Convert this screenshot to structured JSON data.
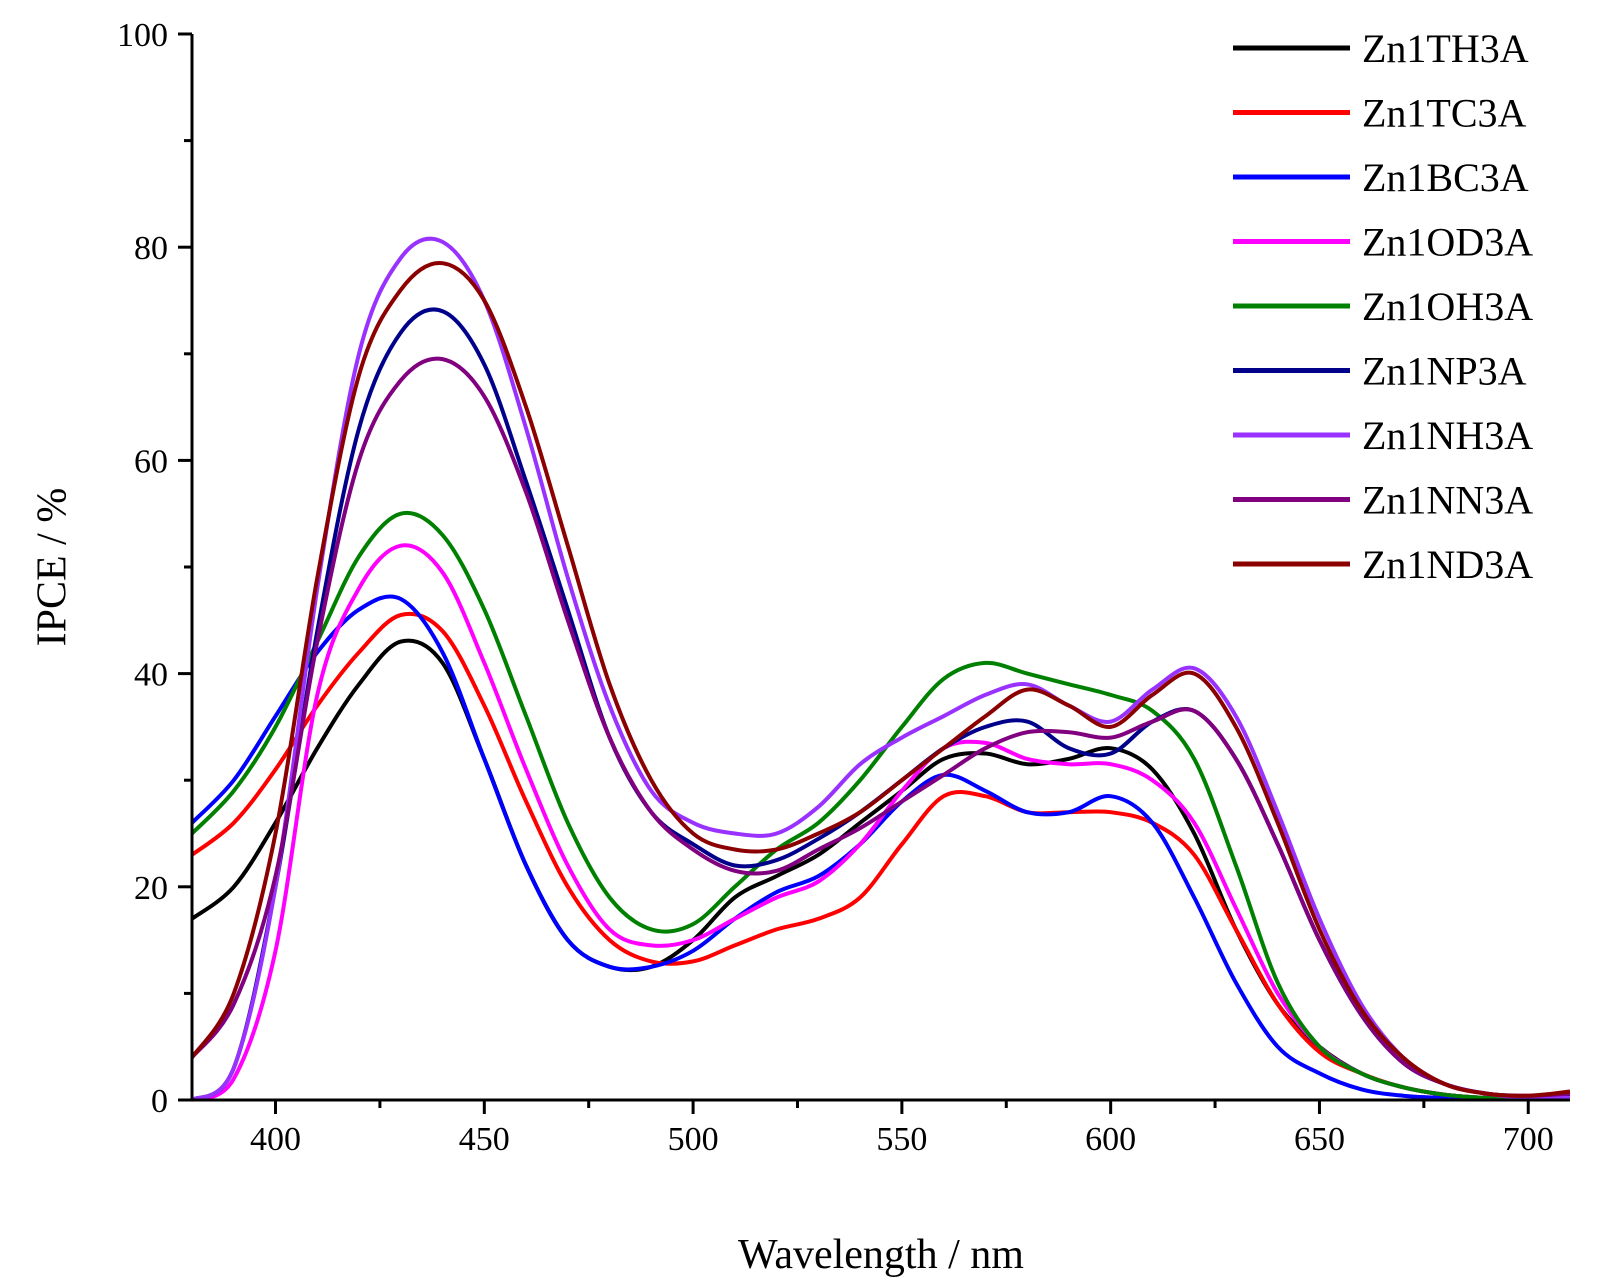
{
  "chart_data": {
    "type": "line",
    "title": "",
    "xlabel": "Wavelength / nm",
    "ylabel": "IPCE / %",
    "xlim": [
      380,
      710
    ],
    "ylim": [
      0,
      100
    ],
    "xticks": [
      400,
      450,
      500,
      550,
      600,
      650,
      700
    ],
    "yticks": [
      0,
      20,
      40,
      60,
      80,
      100
    ],
    "grid": false,
    "legend_position": "top-right",
    "x": [
      380,
      390,
      400,
      410,
      420,
      430,
      440,
      450,
      460,
      470,
      480,
      490,
      500,
      510,
      520,
      530,
      540,
      550,
      560,
      570,
      580,
      590,
      600,
      610,
      620,
      630,
      640,
      650,
      660,
      670,
      680,
      690,
      700,
      710
    ],
    "series": [
      {
        "name": "Zn1TH3A",
        "color": "#000000",
        "values": [
          17,
          20,
          26,
          33,
          39,
          43,
          41,
          32,
          22,
          15,
          12.5,
          12.5,
          15,
          19,
          21,
          23,
          26,
          29,
          32,
          32.5,
          31.5,
          32,
          33,
          31,
          25,
          16,
          9,
          5,
          2.5,
          1.2,
          0.5,
          0.2,
          0.1,
          0.1
        ]
      },
      {
        "name": "Zn1TC3A",
        "color": "#ff0000",
        "values": [
          23,
          26,
          31,
          37,
          42,
          45.5,
          44,
          37,
          28,
          20,
          15,
          13,
          13,
          14.5,
          16,
          17,
          19,
          24,
          28.5,
          28.5,
          27,
          27,
          27,
          26,
          23,
          16,
          9,
          4.5,
          2.5,
          1.2,
          0.5,
          0.2,
          0.1,
          0.1
        ]
      },
      {
        "name": "Zn1BC3A",
        "color": "#0000ff",
        "values": [
          26,
          30,
          36,
          42,
          46,
          47,
          42,
          32,
          22,
          15,
          12.5,
          12.5,
          14,
          17,
          19.5,
          21,
          24,
          28,
          30.5,
          29,
          27,
          27,
          28.5,
          26,
          19,
          11,
          5,
          2.5,
          1,
          0.4,
          0.2,
          0.1,
          0.1,
          0.1
        ]
      },
      {
        "name": "Zn1OD3A",
        "color": "#ff00ff",
        "values": [
          0,
          2,
          14,
          38,
          48,
          52,
          49.5,
          41,
          31,
          22,
          16,
          14.5,
          15,
          17,
          19,
          20.5,
          24,
          29,
          33,
          33.5,
          32,
          31.5,
          31.5,
          30,
          26,
          18,
          10,
          5,
          2.5,
          1.2,
          0.5,
          0.2,
          0.1,
          0.1
        ]
      },
      {
        "name": "Zn1OH3A",
        "color": "#008000",
        "values": [
          25,
          29,
          35,
          43,
          51,
          55,
          53,
          46,
          36,
          26,
          19,
          16,
          16.5,
          20,
          23.5,
          26,
          30,
          35,
          39.5,
          41,
          40,
          39,
          38,
          36.5,
          32,
          22,
          11,
          5,
          2.5,
          1.2,
          0.5,
          0.2,
          0.1,
          0.1
        ]
      },
      {
        "name": "Zn1NP3A",
        "color": "#00008b",
        "values": [
          0,
          3,
          20,
          44,
          63,
          72,
          74,
          69,
          58,
          46,
          34,
          27,
          24,
          22,
          22.5,
          24.5,
          27,
          30,
          33,
          35,
          35.5,
          33,
          32.5,
          35.5,
          36.5,
          32,
          24,
          15,
          8,
          3.5,
          1.5,
          0.6,
          0.3,
          0.3
        ]
      },
      {
        "name": "Zn1NH3A",
        "color": "#9932ff",
        "values": [
          0,
          3,
          20,
          48,
          70,
          79,
          80.5,
          75,
          63,
          49,
          37,
          29,
          26,
          25,
          25,
          27.5,
          31.5,
          34,
          36,
          38,
          39,
          37,
          35.5,
          38.5,
          40.5,
          36,
          27,
          17,
          9,
          4,
          1.5,
          0.6,
          0.2,
          0.2
        ]
      },
      {
        "name": "Zn1NN3A",
        "color": "#800080",
        "values": [
          4,
          9,
          21,
          43,
          60,
          67.5,
          69.5,
          66,
          57,
          45,
          34,
          27,
          23.5,
          21.5,
          21.5,
          23.5,
          25.5,
          28,
          30.5,
          33,
          34.5,
          34.5,
          34,
          35.5,
          36.5,
          32,
          24,
          15,
          8,
          3.5,
          1.5,
          0.6,
          0.4,
          0.6
        ]
      },
      {
        "name": "Zn1ND3A",
        "color": "#8b0000",
        "values": [
          4,
          10,
          25,
          49,
          68,
          76,
          78.5,
          75,
          65,
          52,
          39,
          30,
          25,
          23.5,
          23.5,
          25,
          27,
          30,
          33,
          36,
          38.5,
          37,
          35,
          38,
          40,
          35,
          26,
          16,
          8.5,
          4,
          1.5,
          0.6,
          0.4,
          0.8
        ]
      }
    ]
  }
}
